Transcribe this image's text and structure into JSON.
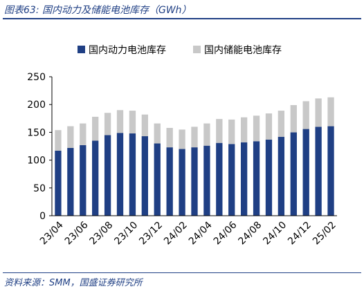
{
  "figure": {
    "title": "图表63:  国内动力及储能电池库存（GWh）",
    "source": "资料来源：SMM，国盛证券研究所"
  },
  "chart_data": {
    "type": "bar",
    "stacked": true,
    "title": "",
    "xlabel": "",
    "ylabel": "",
    "ylim": [
      0,
      250
    ],
    "yticks": [
      0,
      50,
      100,
      150,
      200,
      250
    ],
    "grid": false,
    "legend_position": "top",
    "categories": [
      "23/04",
      "23/05",
      "23/06",
      "23/07",
      "23/08",
      "23/09",
      "23/10",
      "23/11",
      "23/12",
      "24/01",
      "24/02",
      "24/03",
      "24/04",
      "24/05",
      "24/06",
      "24/07",
      "24/08",
      "24/09",
      "24/10",
      "24/11",
      "24/12",
      "25/01",
      "25/02"
    ],
    "xtick_labels": [
      "23/04",
      "23/06",
      "23/08",
      "23/10",
      "23/12",
      "24/02",
      "24/04",
      "24/06",
      "24/08",
      "24/10",
      "24/12",
      "25/02"
    ],
    "series": [
      {
        "name": "国内动力电池库存",
        "color": "#1f3f84",
        "values": [
          117,
          122,
          127,
          135,
          145,
          149,
          148,
          143,
          130,
          123,
          120,
          123,
          126,
          131,
          129,
          132,
          134,
          137,
          142,
          150,
          156,
          160,
          161
        ]
      },
      {
        "name": "国内储能电池库存",
        "color": "#c8c8c8",
        "values": [
          37,
          39,
          39,
          43,
          40,
          41,
          41,
          39,
          36,
          35,
          35,
          37,
          40,
          43,
          44,
          45,
          46,
          47,
          47,
          49,
          50,
          51,
          52
        ]
      }
    ]
  }
}
